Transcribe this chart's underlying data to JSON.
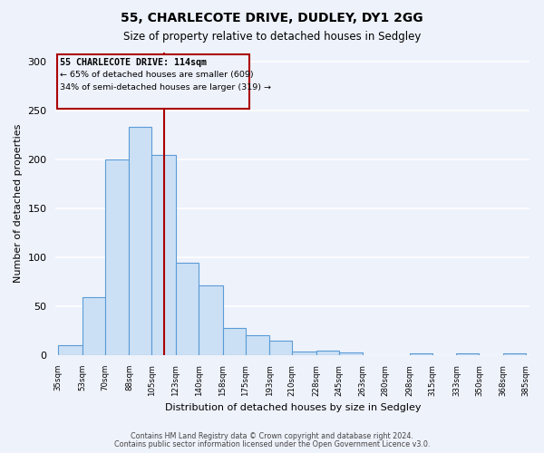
{
  "title": "55, CHARLECOTE DRIVE, DUDLEY, DY1 2GG",
  "subtitle": "Size of property relative to detached houses in Sedgley",
  "xlabel": "Distribution of detached houses by size in Sedgley",
  "ylabel": "Number of detached properties",
  "bar_labels": [
    "35sqm",
    "53sqm",
    "70sqm",
    "88sqm",
    "105sqm",
    "123sqm",
    "140sqm",
    "158sqm",
    "175sqm",
    "193sqm",
    "210sqm",
    "228sqm",
    "245sqm",
    "263sqm",
    "280sqm",
    "298sqm",
    "315sqm",
    "333sqm",
    "350sqm",
    "368sqm",
    "385sqm"
  ],
  "bar_values": [
    10,
    59,
    200,
    234,
    205,
    95,
    71,
    28,
    20,
    15,
    4,
    5,
    3,
    0,
    0,
    2,
    0,
    2,
    0,
    2
  ],
  "bar_edges": [
    35,
    53,
    70,
    88,
    105,
    123,
    140,
    158,
    175,
    193,
    210,
    228,
    245,
    263,
    280,
    298,
    315,
    333,
    350,
    368,
    385
  ],
  "bar_color": "#cce0f5",
  "bar_edge_color": "#5b9bd5",
  "ylim": [
    0,
    310
  ],
  "yticks": [
    0,
    50,
    100,
    150,
    200,
    250,
    300
  ],
  "vline_x": 114,
  "vline_color": "#aa0000",
  "annotation_title": "55 CHARLECOTE DRIVE: 114sqm",
  "annotation_line1": "← 65% of detached houses are smaller (609)",
  "annotation_line2": "34% of semi-detached houses are larger (319) →",
  "annotation_box_color": "#aa0000",
  "bg_color": "#eef2fb",
  "grid_color": "#ffffff",
  "footer1": "Contains HM Land Registry data © Crown copyright and database right 2024.",
  "footer2": "Contains public sector information licensed under the Open Government Licence v3.0."
}
